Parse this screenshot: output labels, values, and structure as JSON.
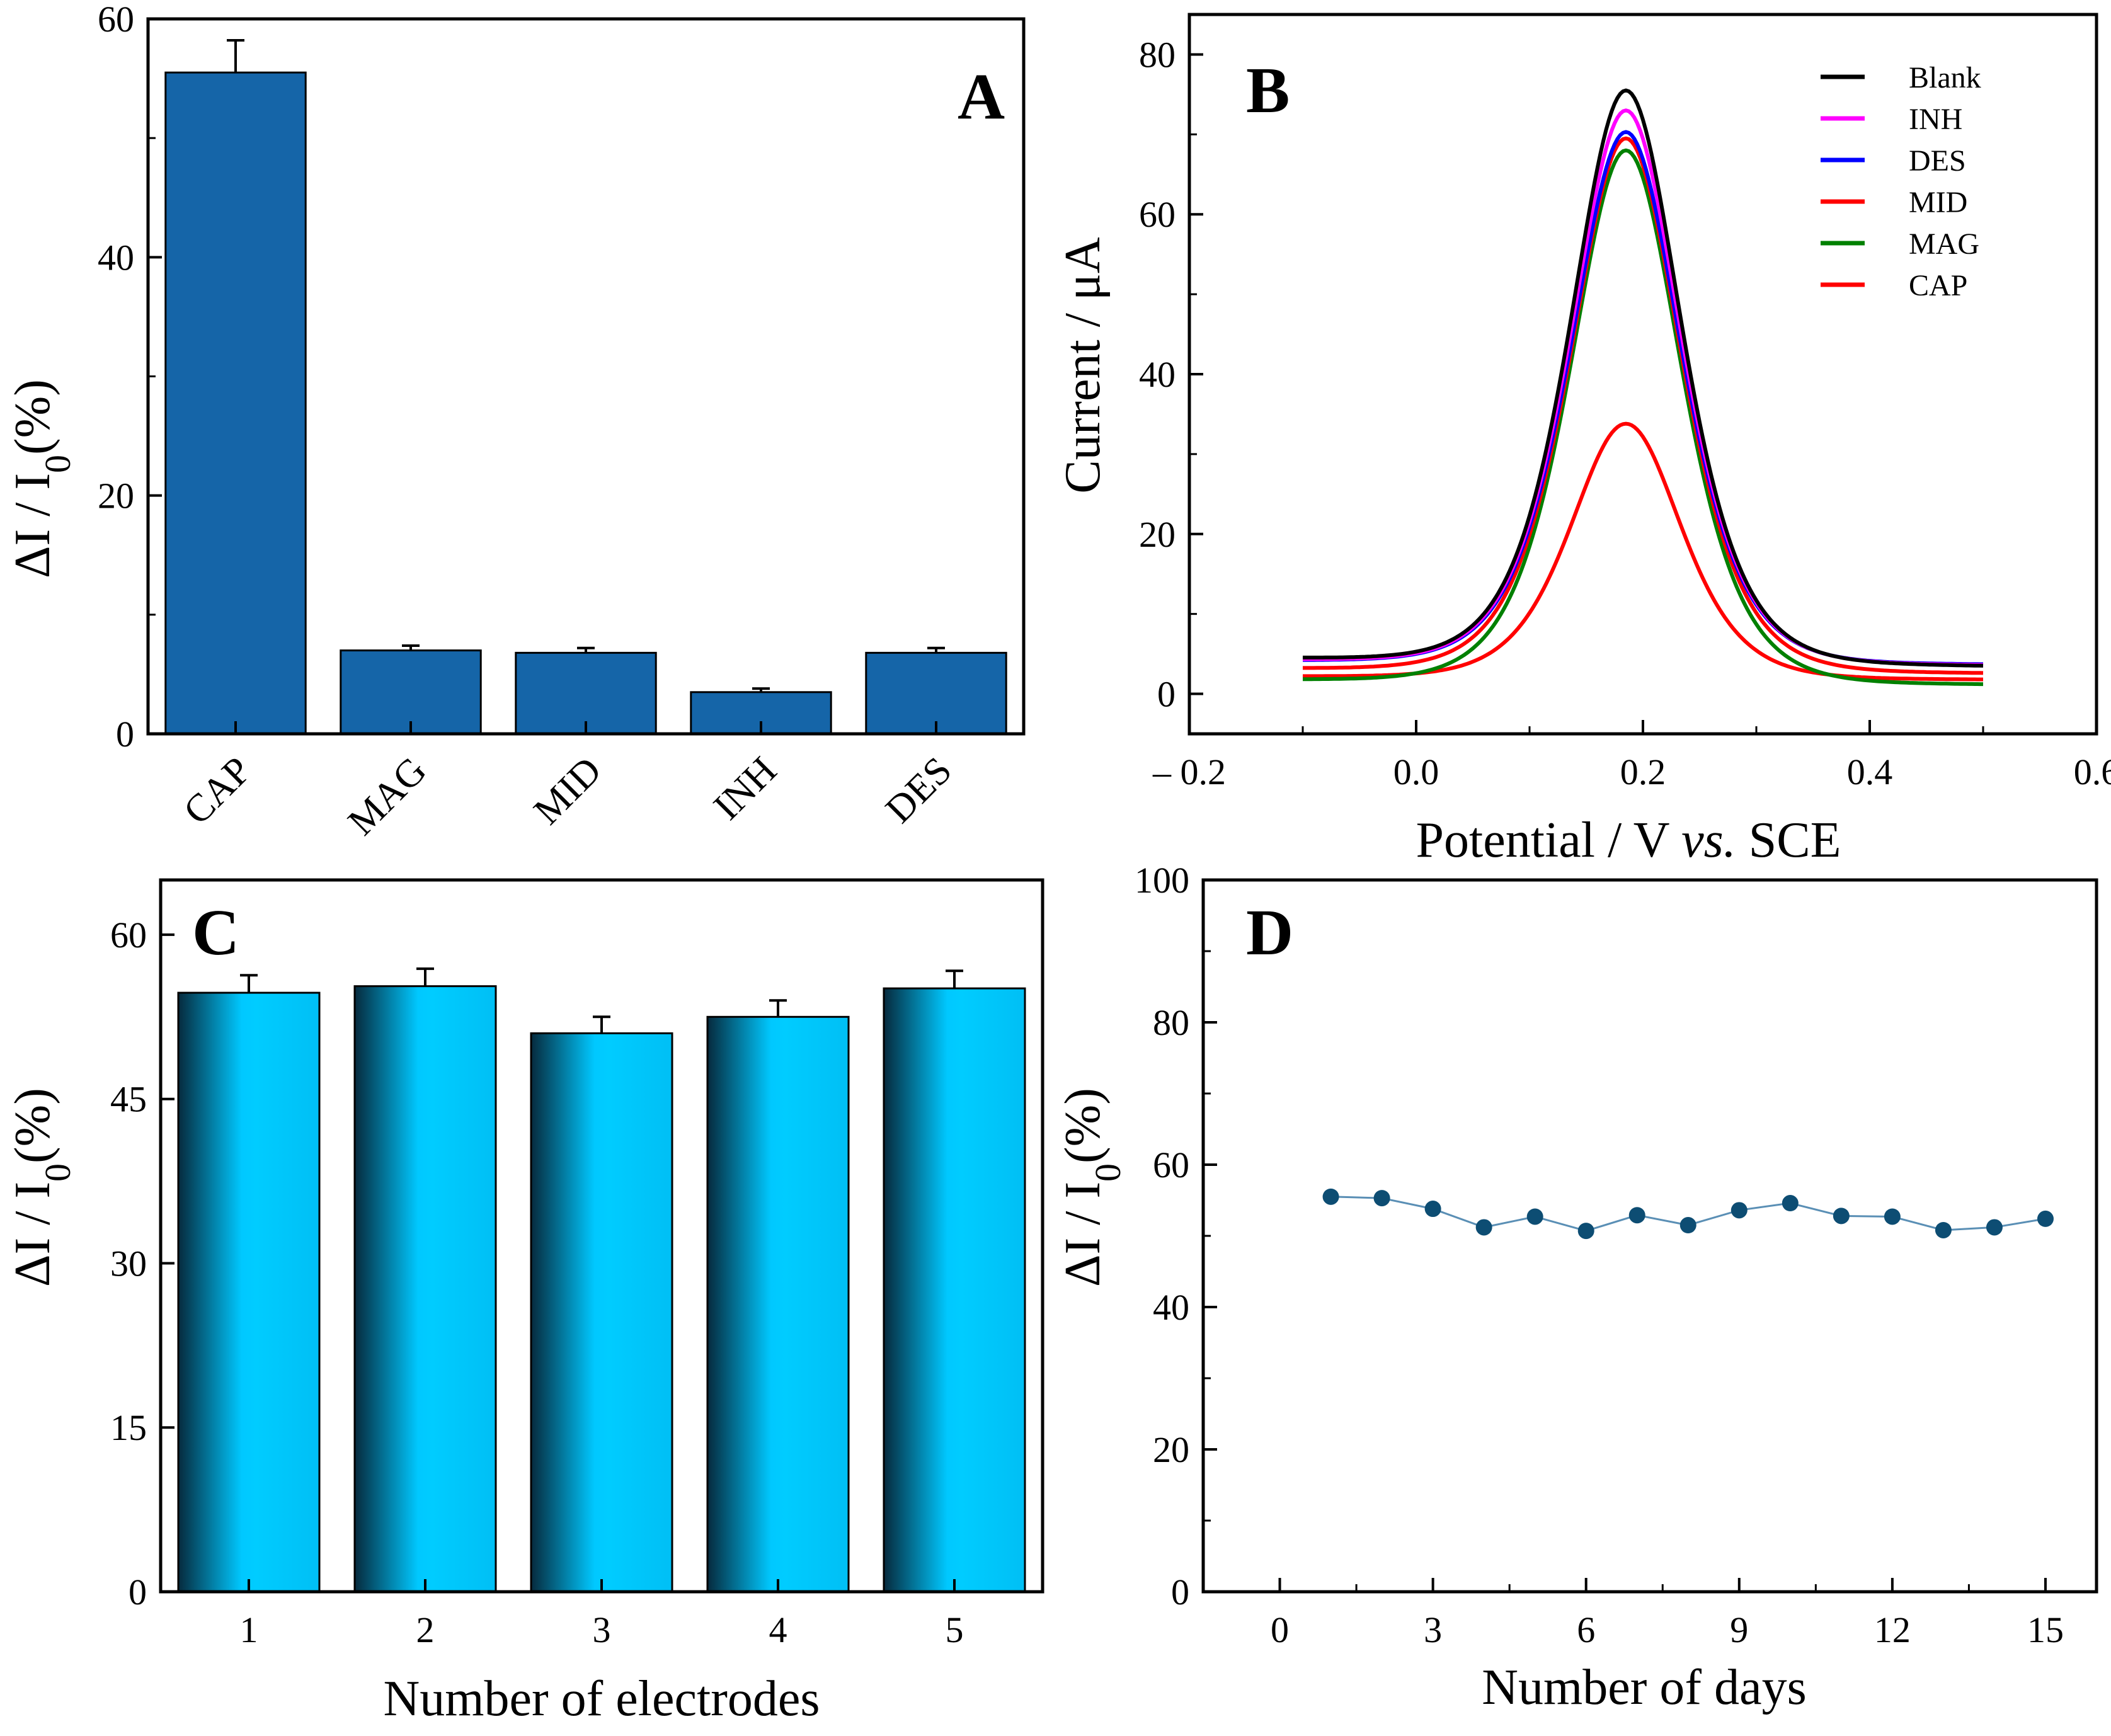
{
  "chart_data": [
    {
      "panel": "A",
      "type": "bar",
      "label": "A",
      "categories": [
        "CAP",
        "MAG",
        "MID",
        "INH",
        "DES"
      ],
      "values": [
        55.5,
        7.0,
        6.8,
        3.5,
        6.8
      ],
      "errors": [
        2.7,
        0.4,
        0.4,
        0.3,
        0.4
      ],
      "ylabel_main": "ΔI  /  I",
      "ylabel_sub": "0",
      "ylabel_tail": "(%)",
      "xlabel": "",
      "ylim": [
        0,
        60
      ],
      "yticks": [
        0,
        20,
        40,
        60
      ],
      "color": "#1565a8"
    },
    {
      "panel": "B",
      "type": "line",
      "label": "B",
      "xlabel_pre": "Potential / V ",
      "xlabel_em": "vs.",
      "xlabel_post": " SCE",
      "ylabel": "Current / μA",
      "xlim": [
        -0.2,
        0.6
      ],
      "ylim": [
        -5,
        85
      ],
      "xticks": [
        -0.2,
        0.0,
        0.2,
        0.4,
        0.6
      ],
      "xtick_labels": [
        "– 0.2",
        "0.0",
        "0.2",
        "0.4",
        "0.6"
      ],
      "yticks": [
        0,
        20,
        40,
        60,
        80
      ],
      "x_range": [
        -0.1,
        0.5
      ],
      "peak_center": 0.185,
      "peak_width": 0.065,
      "legend_position": "top-right",
      "series": [
        {
          "name": "Blank",
          "color": "#000000",
          "peak": 75.5,
          "base_left": 4.5,
          "base_right": 3.5
        },
        {
          "name": "INH",
          "color": "#ff00ff",
          "peak": 73.0,
          "base_left": 4.3,
          "base_right": 3.6
        },
        {
          "name": "DES",
          "color": "#0000ff",
          "peak": 70.3,
          "base_left": 4.2,
          "base_right": 3.7
        },
        {
          "name": "MID",
          "color": "#ff0000",
          "peak": 69.5,
          "base_left": 3.2,
          "base_right": 2.6
        },
        {
          "name": "MAG",
          "color": "#008000",
          "peak": 68.0,
          "base_left": 1.8,
          "base_right": 1.2
        },
        {
          "name": "CAP",
          "color": "#ff0000",
          "peak": 33.8,
          "base_left": 2.2,
          "base_right": 1.8
        }
      ]
    },
    {
      "panel": "C",
      "type": "bar",
      "label": "C",
      "categories": [
        "1",
        "2",
        "3",
        "4",
        "5"
      ],
      "values": [
        54.7,
        55.3,
        51.0,
        52.5,
        55.1
      ],
      "errors": [
        1.6,
        1.6,
        1.5,
        1.5,
        1.6
      ],
      "xlabel": "Number of  electrodes",
      "ylabel_main": "ΔI  /  I",
      "ylabel_sub": "0",
      "ylabel_tail": "(%)",
      "ylim": [
        0,
        65
      ],
      "yticks": [
        0,
        15,
        30,
        45,
        60
      ],
      "color": "#00c8ff"
    },
    {
      "panel": "D",
      "type": "scatter",
      "label": "D",
      "x": [
        1,
        2,
        3,
        4,
        5,
        6,
        7,
        8,
        9,
        10,
        11,
        12,
        13,
        14,
        15
      ],
      "y": [
        55.5,
        55.3,
        53.8,
        51.2,
        52.7,
        50.7,
        52.9,
        51.5,
        53.6,
        54.6,
        52.8,
        52.7,
        50.8,
        51.2,
        52.4
      ],
      "xlabel": "Number of days",
      "ylabel_main": "ΔI  /  I",
      "ylabel_sub": "0",
      "ylabel_tail": "(%)",
      "xlim": [
        -1.5,
        16
      ],
      "ylim": [
        0,
        100
      ],
      "xticks": [
        0,
        3,
        6,
        9,
        12,
        15
      ],
      "yticks": [
        0,
        20,
        40,
        60,
        80,
        100
      ],
      "color": "#0d4d73"
    }
  ]
}
